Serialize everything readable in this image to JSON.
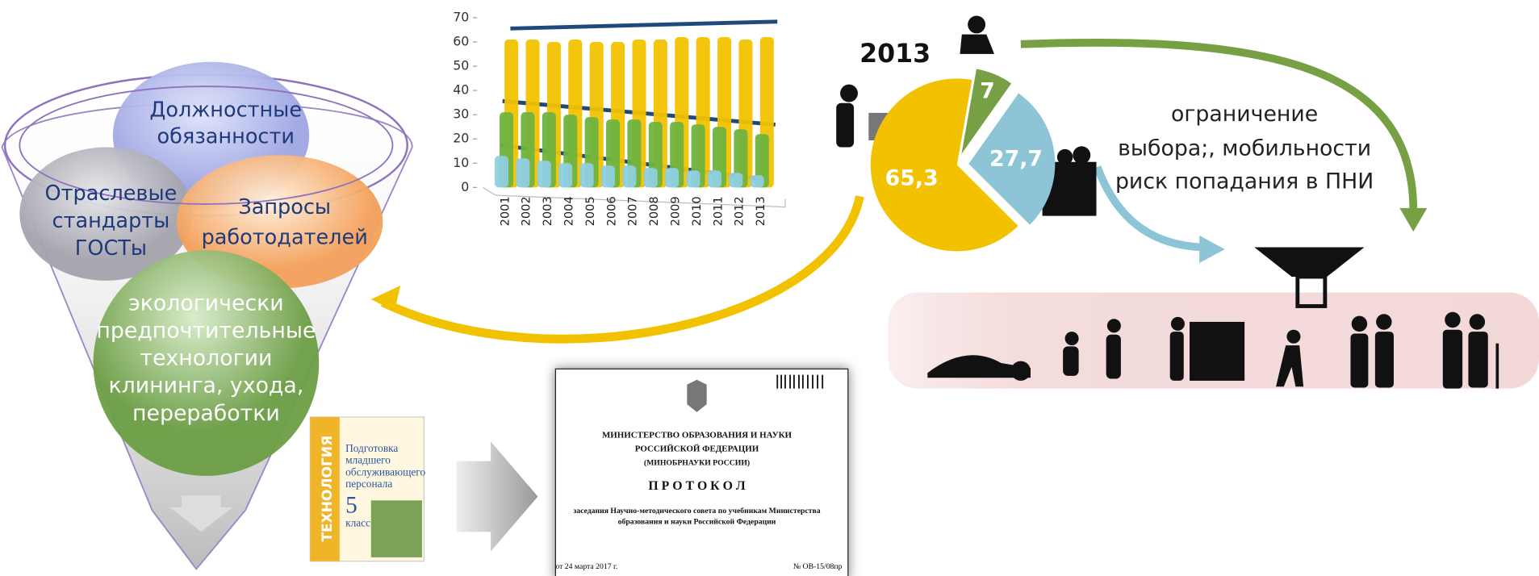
{
  "chart_data": [
    {
      "type": "bar",
      "categories": [
        "2001",
        "2002",
        "2003",
        "2004",
        "2005",
        "2006",
        "2007",
        "2008",
        "2009",
        "2010",
        "2011",
        "2012",
        "2013"
      ],
      "series": [
        {
          "color": "#f2c200",
          "values": [
            61,
            61,
            60,
            61,
            60,
            60,
            61,
            61,
            62,
            62,
            62,
            61,
            62
          ]
        },
        {
          "color": "#6fb33f",
          "values": [
            31,
            31,
            31,
            30,
            29,
            28,
            28,
            27,
            27,
            26,
            25,
            24,
            22
          ]
        },
        {
          "color": "#8ecfe0",
          "values": [
            13,
            12,
            11,
            10,
            10,
            9,
            9,
            8,
            8,
            7,
            7,
            6,
            5
          ]
        }
      ],
      "ylim": [
        0,
        70
      ],
      "yticks": [
        0,
        10,
        20,
        30,
        40,
        50,
        60,
        70
      ],
      "grid": false
    },
    {
      "type": "pie",
      "title": "2013",
      "values": [
        7,
        27.7,
        65.3
      ],
      "value_labels": [
        "7",
        "27,7",
        "65,3"
      ],
      "colors": [
        "#77a045",
        "#8ec5d6",
        "#f2c200"
      ]
    }
  ],
  "funnel": {
    "items": [
      [
        "Должностные",
        "обязанности"
      ],
      [
        "Отраслевые",
        "стандарты",
        "ГОСТы"
      ],
      [
        "Запросы",
        "работодателей"
      ],
      [
        "экологически",
        "предпочтительные",
        "технологии",
        "клининга, ухода,",
        "переработки"
      ]
    ]
  },
  "note": [
    "ограничение",
    "выбора;, мобильности",
    "риск попадания в ПНИ"
  ],
  "book": {
    "spine": "ТЕХНОЛОГИЯ",
    "title": [
      "Подготовка",
      "младшего",
      "обслуживающего",
      "персонала"
    ],
    "grade": "5",
    "grade_word": "класс"
  },
  "document": {
    "ministry": [
      "МИНИСТЕРСТВО ОБРАЗОВАНИЯ И НАУКИ",
      "РОССИЙСКОЙ ФЕДЕРАЦИИ",
      "(МИНОБРНАУКИ РОССИИ)"
    ],
    "heading": "П Р О Т О К О Л",
    "subject": [
      "заседания Научно-методического совета по учебникам Министерства",
      "образования и науки Российской Федерации"
    ],
    "date": "от 24 марта 2017 г.",
    "number": "№ ОВ-15/08пр"
  }
}
